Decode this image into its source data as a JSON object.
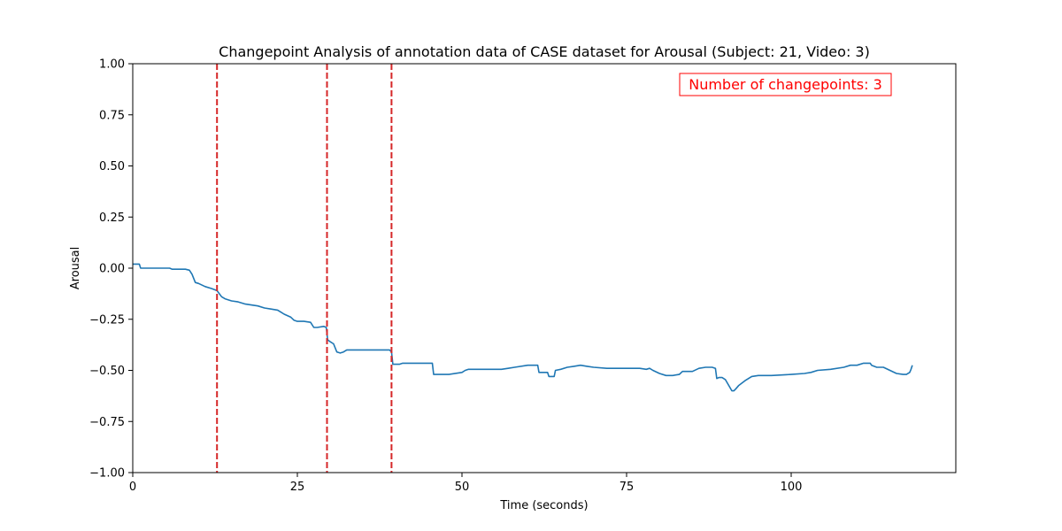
{
  "chart_data": {
    "type": "line",
    "title": "Changepoint Analysis of annotation data of CASE dataset for Arousal (Subject: 21, Video: 3)",
    "xlabel": "Time (seconds)",
    "ylabel": "Arousal",
    "xlim": [
      0,
      125
    ],
    "ylim": [
      -1.0,
      1.0
    ],
    "xticks": [
      0,
      25,
      50,
      75,
      100
    ],
    "xtick_labels": [
      "0",
      "25",
      "50",
      "75",
      "100"
    ],
    "yticks": [
      -1.0,
      -0.75,
      -0.5,
      -0.25,
      0.0,
      0.25,
      0.5,
      0.75,
      1.0
    ],
    "ytick_labels": [
      "−1.00",
      "−0.75",
      "−0.50",
      "−0.25",
      "0.00",
      "0.25",
      "0.50",
      "0.75",
      "1.00"
    ],
    "grid": false,
    "annotation": "Number of changepoints: 3",
    "changepoints": [
      12.8,
      29.5,
      39.3
    ],
    "colors": {
      "line": "#1f77b4",
      "changepoint": "#d62728",
      "annotation": "#ff0000"
    },
    "series": [
      {
        "x": [
          0.0,
          0.5,
          1.0,
          1.2,
          2.0,
          3.0,
          4.0,
          5.0,
          5.6,
          6.0,
          7.0,
          8.0,
          8.6,
          9.0,
          9.5,
          10.0,
          11.0,
          12.0,
          12.8,
          13.5,
          14.0,
          15.0,
          16.0,
          17.0,
          18.0,
          19.0,
          20.0,
          21.0,
          22.0,
          22.5,
          23.0,
          24.0,
          24.5,
          25.0,
          26.0,
          27.0,
          27.5,
          28.0,
          29.0,
          29.4,
          29.6,
          30.0,
          30.5,
          31.0,
          31.5,
          32.0,
          32.5,
          33.0,
          35.0,
          37.0,
          39.0,
          39.3,
          39.5,
          40.0,
          40.5,
          41.0,
          42.0,
          45.5,
          45.7,
          46.0,
          48.0,
          50.0,
          50.5,
          51.0,
          52.0,
          56.0,
          57.0,
          58.0,
          60.0,
          61.5,
          61.7,
          62.0,
          63.0,
          63.2,
          64.0,
          64.2,
          65.0,
          66.0,
          67.0,
          68.0,
          69.0,
          70.0,
          72.0,
          75.0,
          77.0,
          78.0,
          78.5,
          79.0,
          80.0,
          81.0,
          82.0,
          83.0,
          83.5,
          85.0,
          86.0,
          87.0,
          88.0,
          88.5,
          88.7,
          89.0,
          89.5,
          90.0,
          91.0,
          91.3,
          91.6,
          92.0,
          93.0,
          94.0,
          95.0,
          97.0,
          100.0,
          102.0,
          103.0,
          104.0,
          106.0,
          108.0,
          109.0,
          110.0,
          111.0,
          112.0,
          112.2,
          113.0,
          114.0,
          115.0,
          116.0,
          117.0,
          117.5,
          118.0,
          118.2,
          118.4
        ],
        "y": [
          0.02,
          0.02,
          0.02,
          0.0,
          0.0,
          0.0,
          0.0,
          0.0,
          0.0,
          -0.005,
          -0.005,
          -0.005,
          -0.01,
          -0.03,
          -0.07,
          -0.075,
          -0.09,
          -0.1,
          -0.11,
          -0.14,
          -0.15,
          -0.16,
          -0.165,
          -0.175,
          -0.18,
          -0.185,
          -0.195,
          -0.2,
          -0.205,
          -0.215,
          -0.225,
          -0.24,
          -0.255,
          -0.26,
          -0.26,
          -0.265,
          -0.29,
          -0.29,
          -0.285,
          -0.29,
          -0.35,
          -0.36,
          -0.37,
          -0.41,
          -0.415,
          -0.41,
          -0.4,
          -0.4,
          -0.4,
          -0.4,
          -0.4,
          -0.41,
          -0.47,
          -0.47,
          -0.47,
          -0.465,
          -0.465,
          -0.465,
          -0.52,
          -0.52,
          -0.52,
          -0.51,
          -0.5,
          -0.495,
          -0.495,
          -0.495,
          -0.49,
          -0.485,
          -0.475,
          -0.475,
          -0.51,
          -0.51,
          -0.51,
          -0.53,
          -0.53,
          -0.5,
          -0.495,
          -0.485,
          -0.48,
          -0.475,
          -0.48,
          -0.485,
          -0.49,
          -0.49,
          -0.49,
          -0.495,
          -0.49,
          -0.5,
          -0.515,
          -0.525,
          -0.525,
          -0.52,
          -0.505,
          -0.505,
          -0.49,
          -0.485,
          -0.485,
          -0.49,
          -0.54,
          -0.535,
          -0.535,
          -0.545,
          -0.6,
          -0.6,
          -0.59,
          -0.575,
          -0.55,
          -0.53,
          -0.525,
          -0.525,
          -0.52,
          -0.515,
          -0.51,
          -0.5,
          -0.495,
          -0.485,
          -0.475,
          -0.475,
          -0.465,
          -0.465,
          -0.475,
          -0.485,
          -0.485,
          -0.5,
          -0.515,
          -0.52,
          -0.52,
          -0.51,
          -0.495,
          -0.475
        ]
      }
    ]
  }
}
